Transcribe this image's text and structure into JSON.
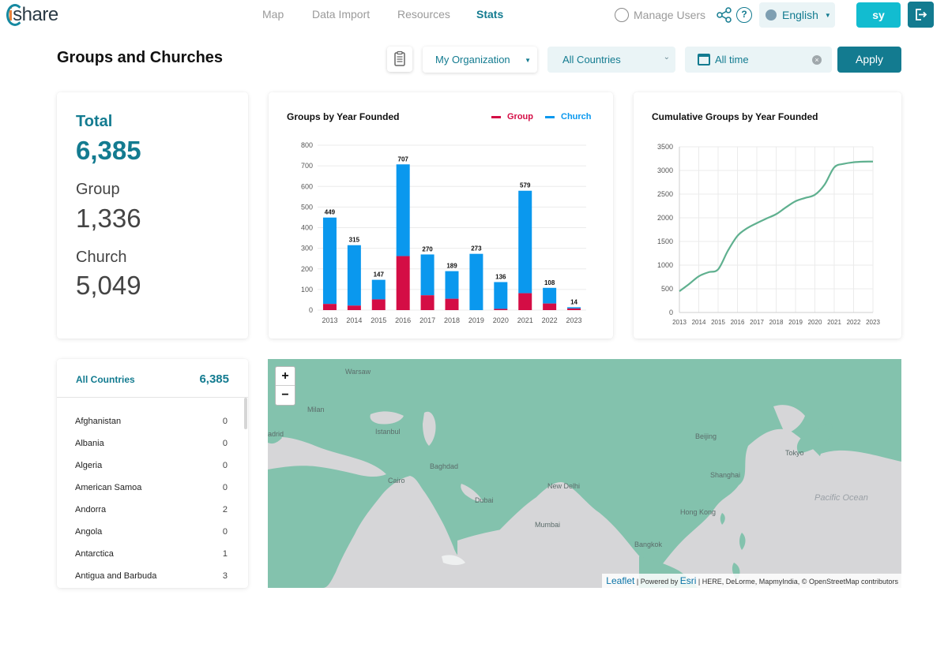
{
  "nav": {
    "links": [
      "Map",
      "Data Import",
      "Resources",
      "Stats"
    ],
    "active": "Stats",
    "manage_users": "Manage Users",
    "language": "English",
    "user_initials": "sy"
  },
  "brand": {
    "logo_text": "share",
    "logo_i": "i"
  },
  "header": {
    "title": "Groups and Churches",
    "org_select": "My Organization",
    "country_select": "All Countries",
    "time_select": "All time",
    "apply_label": "Apply"
  },
  "totals": {
    "total_label": "Total",
    "total_value": "6,385",
    "group_label": "Group",
    "group_value": "1,336",
    "church_label": "Church",
    "church_value": "5,049"
  },
  "colors": {
    "accent": "#137b90",
    "group": "#d40d45",
    "church": "#0a98ee",
    "line": "#5fb08f",
    "land": "#83c2ad"
  },
  "chart_data": [
    {
      "type": "bar",
      "stacked": true,
      "title": "Groups by Year Founded",
      "categories": [
        "2013",
        "2014",
        "2015",
        "2016",
        "2017",
        "2018",
        "2019",
        "2020",
        "2021",
        "2022",
        "2023"
      ],
      "series": [
        {
          "name": "Group",
          "values": [
            30,
            22,
            52,
            262,
            72,
            55,
            0,
            6,
            82,
            32,
            8
          ]
        },
        {
          "name": "Church",
          "values": [
            419,
            293,
            95,
            445,
            198,
            134,
            273,
            130,
            497,
            76,
            6
          ]
        }
      ],
      "totals": [
        449,
        315,
        147,
        707,
        270,
        189,
        273,
        136,
        579,
        108,
        14
      ],
      "ylim": [
        0,
        800
      ],
      "yticks": [
        0,
        100,
        200,
        300,
        400,
        500,
        600,
        700,
        800
      ],
      "legend": "top-right",
      "grid": true
    },
    {
      "type": "line",
      "title": "Cumulative Groups by Year Founded",
      "x": [
        "2013",
        "2014",
        "2015",
        "2016",
        "2017",
        "2018",
        "2019",
        "2020",
        "2021",
        "2022",
        "2023"
      ],
      "points": [
        [
          0,
          449
        ],
        [
          0.5,
          600
        ],
        [
          1,
          764
        ],
        [
          1.5,
          850
        ],
        [
          2,
          911
        ],
        [
          2.5,
          1300
        ],
        [
          3,
          1618
        ],
        [
          3.5,
          1780
        ],
        [
          4,
          1888
        ],
        [
          4.5,
          1985
        ],
        [
          5,
          2077
        ],
        [
          5.5,
          2220
        ],
        [
          6,
          2350
        ],
        [
          6.5,
          2420
        ],
        [
          7,
          2486
        ],
        [
          7.5,
          2700
        ],
        [
          8,
          3065
        ],
        [
          8.5,
          3140
        ],
        [
          9,
          3173
        ],
        [
          9.5,
          3186
        ],
        [
          10,
          3187
        ]
      ],
      "ylim": [
        0,
        3500
      ],
      "yticks": [
        0,
        500,
        1000,
        1500,
        2000,
        2500,
        3000,
        3500
      ],
      "grid": true
    }
  ],
  "countries": {
    "header_label": "All Countries",
    "header_total": "6,385",
    "rows": [
      {
        "name": "Afghanistan",
        "count": "0"
      },
      {
        "name": "Albania",
        "count": "0"
      },
      {
        "name": "Algeria",
        "count": "0"
      },
      {
        "name": "American Samoa",
        "count": "0"
      },
      {
        "name": "Andorra",
        "count": "2"
      },
      {
        "name": "Angola",
        "count": "0"
      },
      {
        "name": "Antarctica",
        "count": "1"
      },
      {
        "name": "Antigua and Barbuda",
        "count": "3"
      }
    ]
  },
  "map": {
    "zoom_in": "+",
    "zoom_out": "−",
    "labels": [
      "Warsaw",
      "Milan",
      "Istanbul",
      "adrid",
      "Cairo",
      "Baghdad",
      "Dubai",
      "New Delhi",
      "Mumbai",
      "Beijing",
      "Tokyo",
      "Shanghai",
      "Hong Kong",
      "Bangkok",
      "Pacific Ocean"
    ],
    "attribution_leaflet": "Leaflet",
    "attribution_powered": "Powered by",
    "attribution_esri": "Esri",
    "attribution_rest": "HERE, DeLorme, MapmyIndia, © OpenStreetMap contributors"
  }
}
